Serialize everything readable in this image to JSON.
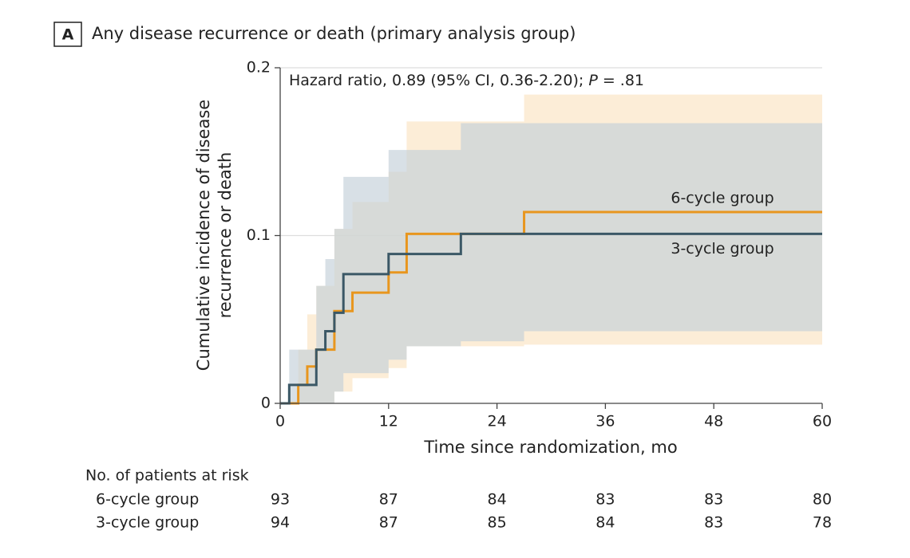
{
  "chart_data": {
    "type": "step",
    "panel": "A",
    "title": "Any disease recurrence or death (primary analysis group)",
    "annotation": [
      "Hazard ratio, 0.89 (95% CI, 0.36-2.20); ",
      "P",
      " = .81"
    ],
    "x_label": "Time since randomization, mo",
    "y_label": [
      "Cumulative incidence of disease",
      "recurrence or death"
    ],
    "xlim": [
      0,
      60
    ],
    "xticks": [
      0,
      12,
      24,
      36,
      48,
      60
    ],
    "ylim": [
      0,
      0.2
    ],
    "yticks": [
      0,
      0.1,
      0.2
    ],
    "grid": true,
    "series": [
      {
        "name": "6-cycle group",
        "color": "#e8961e",
        "band_color": "#fbe3c2",
        "x": [
          0,
          2,
          3,
          4,
          6,
          8,
          12,
          14,
          27,
          60
        ],
        "values": [
          0,
          0.011,
          0.022,
          0.032,
          0.055,
          0.066,
          0.078,
          0.101,
          0.114,
          0.114
        ],
        "lower": [
          0,
          0,
          0,
          0,
          0.007,
          0.015,
          0.021,
          0.034,
          0.035,
          0.035
        ],
        "upper": [
          0,
          0.032,
          0.053,
          0.07,
          0.104,
          0.12,
          0.138,
          0.168,
          0.184,
          0.184
        ]
      },
      {
        "name": "3-cycle group",
        "color": "#3b5866",
        "band_color": "#c3cfd8",
        "x": [
          0,
          1,
          4,
          5,
          6,
          7,
          12,
          14,
          20,
          27,
          60
        ],
        "values": [
          0,
          0.011,
          0.032,
          0.043,
          0.054,
          0.077,
          0.089,
          0.089,
          0.101,
          0.101,
          0.101
        ],
        "lower": [
          0,
          0,
          0,
          0,
          0.007,
          0.018,
          0.026,
          0.034,
          0.037,
          0.043,
          0.043
        ],
        "upper": [
          0,
          0.032,
          0.07,
          0.086,
          0.104,
          0.135,
          0.151,
          0.151,
          0.167,
          0.167,
          0.167
        ]
      }
    ],
    "risk_table": {
      "title": "No. of patients at risk",
      "rows": [
        {
          "label": "6-cycle group",
          "values": [
            93,
            87,
            84,
            83,
            83,
            80
          ]
        },
        {
          "label": "3-cycle group",
          "values": [
            94,
            87,
            85,
            84,
            83,
            78
          ]
        }
      ]
    }
  }
}
